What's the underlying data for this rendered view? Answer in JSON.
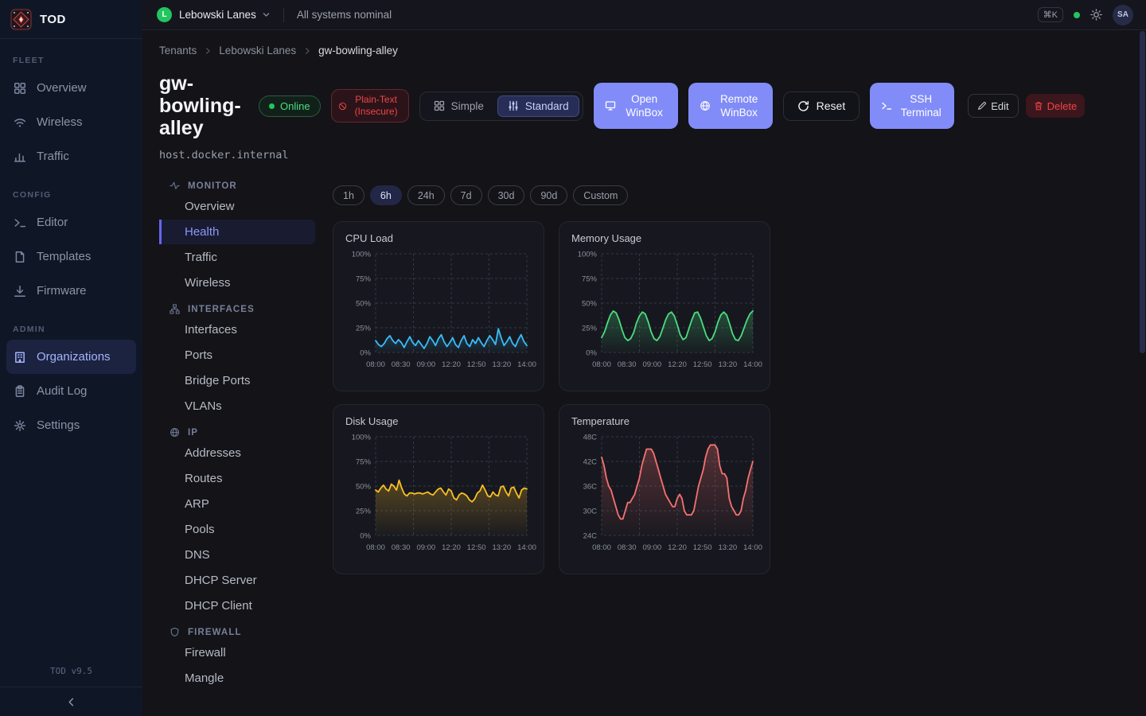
{
  "app": {
    "name": "TOD",
    "version": "TOD v9.5"
  },
  "topbar": {
    "tenant": "Lebowski Lanes",
    "tenant_initial": "L",
    "status": "All systems nominal",
    "kbd": "⌘K",
    "avatar": "SA"
  },
  "sidebar": {
    "active": "Organizations",
    "sections": [
      {
        "label": "FLEET",
        "items": [
          {
            "icon": "grid",
            "label": "Overview"
          },
          {
            "icon": "wifi",
            "label": "Wireless"
          },
          {
            "icon": "bars",
            "label": "Traffic"
          }
        ]
      },
      {
        "label": "CONFIG",
        "items": [
          {
            "icon": "terminal",
            "label": "Editor"
          },
          {
            "icon": "file",
            "label": "Templates"
          },
          {
            "icon": "download",
            "label": "Firmware"
          }
        ]
      },
      {
        "label": "ADMIN",
        "items": [
          {
            "icon": "building",
            "label": "Organizations"
          },
          {
            "icon": "clipboard",
            "label": "Audit Log"
          },
          {
            "icon": "gear",
            "label": "Settings"
          }
        ]
      }
    ]
  },
  "breadcrumb": {
    "items": [
      "Tenants",
      "Lebowski Lanes",
      "gw-bowling-alley"
    ]
  },
  "device": {
    "name": "gw-bowling-alley",
    "status": "Online",
    "security_badge": "Plain-Text (Insecure)",
    "host": "host.docker.internal"
  },
  "view_toggle": {
    "simple": "Simple",
    "standard": "Standard",
    "active": "Standard"
  },
  "actions": {
    "open_winbox": "Open WinBox",
    "remote_winbox": "Remote WinBox",
    "reset": "Reset",
    "ssh": "SSH Terminal",
    "edit": "Edit",
    "delete": "Delete"
  },
  "subnav": {
    "active": "Health",
    "sections": [
      {
        "label": "MONITOR",
        "icon": "activity",
        "items": [
          "Overview",
          "Health",
          "Traffic",
          "Wireless"
        ]
      },
      {
        "label": "INTERFACES",
        "icon": "network",
        "items": [
          "Interfaces",
          "Ports",
          "Bridge Ports",
          "VLANs"
        ]
      },
      {
        "label": "IP",
        "icon": "globe",
        "items": [
          "Addresses",
          "Routes",
          "ARP",
          "Pools",
          "DNS",
          "DHCP Server",
          "DHCP Client"
        ]
      },
      {
        "label": "FIREWALL",
        "icon": "shield",
        "items": [
          "Firewall",
          "Mangle"
        ]
      }
    ]
  },
  "time_ranges": {
    "active": "6h",
    "options": [
      "1h",
      "6h",
      "24h",
      "7d",
      "30d",
      "90d",
      "Custom"
    ]
  },
  "chart_data": [
    {
      "type": "line",
      "title": "CPU Load",
      "color": "#38bdf8",
      "ylim": [
        0,
        100
      ],
      "y_ticks": [
        "100%",
        "75%",
        "50%",
        "25%",
        "0%"
      ],
      "x_ticks": [
        "08:00",
        "08:30",
        "09:00",
        "12:20",
        "12:50",
        "13:20",
        "14:00"
      ],
      "values": [
        12,
        8,
        6,
        9,
        14,
        17,
        12,
        9,
        13,
        10,
        5,
        11,
        16,
        10,
        7,
        12,
        8,
        4,
        9,
        16,
        12,
        7,
        14,
        18,
        11,
        6,
        10,
        15,
        8,
        5,
        12,
        17,
        9,
        6,
        13,
        9,
        15,
        10,
        6,
        12,
        17,
        13,
        8,
        24,
        15,
        7,
        11,
        16,
        9,
        6,
        13,
        18,
        11,
        7
      ]
    },
    {
      "type": "line",
      "title": "Memory Usage",
      "color": "#4ade80",
      "ylim": [
        0,
        100
      ],
      "y_ticks": [
        "100%",
        "75%",
        "50%",
        "25%",
        "0%"
      ],
      "x_ticks": [
        "08:00",
        "08:30",
        "09:00",
        "12:20",
        "12:50",
        "13:20",
        "14:00"
      ],
      "values": [
        15,
        21,
        30,
        38,
        42,
        40,
        33,
        23,
        15,
        12,
        14,
        20,
        30,
        37,
        41,
        39,
        31,
        21,
        14,
        12,
        16,
        24,
        33,
        39,
        41,
        37,
        28,
        18,
        13,
        15,
        24,
        33,
        40,
        41,
        35,
        26,
        17,
        12,
        14,
        21,
        31,
        38,
        41,
        38,
        29,
        19,
        13,
        12,
        17,
        25,
        33,
        39,
        42
      ]
    },
    {
      "type": "line",
      "title": "Disk Usage",
      "color": "#fbbf24",
      "ylim": [
        0,
        100
      ],
      "y_ticks": [
        "100%",
        "75%",
        "50%",
        "25%",
        "0%"
      ],
      "x_ticks": [
        "08:00",
        "08:30",
        "09:00",
        "12:20",
        "12:50",
        "13:20",
        "14:00"
      ],
      "values": [
        46,
        44,
        48,
        51,
        47,
        45,
        52,
        50,
        46,
        56,
        48,
        42,
        40,
        43,
        43,
        42,
        43,
        43,
        42,
        43,
        44,
        42,
        41,
        44,
        47,
        48,
        44,
        41,
        47,
        45,
        38,
        36,
        41,
        43,
        42,
        40,
        36,
        34,
        37,
        43,
        45,
        51,
        46,
        40,
        39,
        44,
        41,
        40,
        49,
        50,
        44,
        40,
        48,
        49,
        43,
        38,
        46,
        48,
        47
      ]
    },
    {
      "type": "line",
      "title": "Temperature",
      "color": "#f87171",
      "ylim": [
        24,
        48
      ],
      "y_ticks": [
        "48C",
        "42C",
        "36C",
        "30C",
        "24C"
      ],
      "x_ticks": [
        "08:00",
        "08:30",
        "09:00",
        "12:20",
        "12:50",
        "13:20",
        "14:00"
      ],
      "values": [
        43,
        41,
        38,
        36,
        35,
        33,
        31,
        29,
        28,
        28,
        30,
        32,
        32,
        33,
        34,
        36,
        38,
        41,
        43,
        45,
        45,
        45,
        44,
        42,
        40,
        38,
        36,
        34,
        33,
        32,
        31,
        31,
        33,
        34,
        33,
        30,
        29,
        29,
        29,
        30,
        33,
        36,
        38,
        40,
        43,
        45,
        46,
        46,
        46,
        45,
        41,
        39,
        39,
        38,
        33,
        31,
        30,
        29,
        29,
        30,
        33,
        35,
        38,
        40,
        42
      ]
    }
  ]
}
